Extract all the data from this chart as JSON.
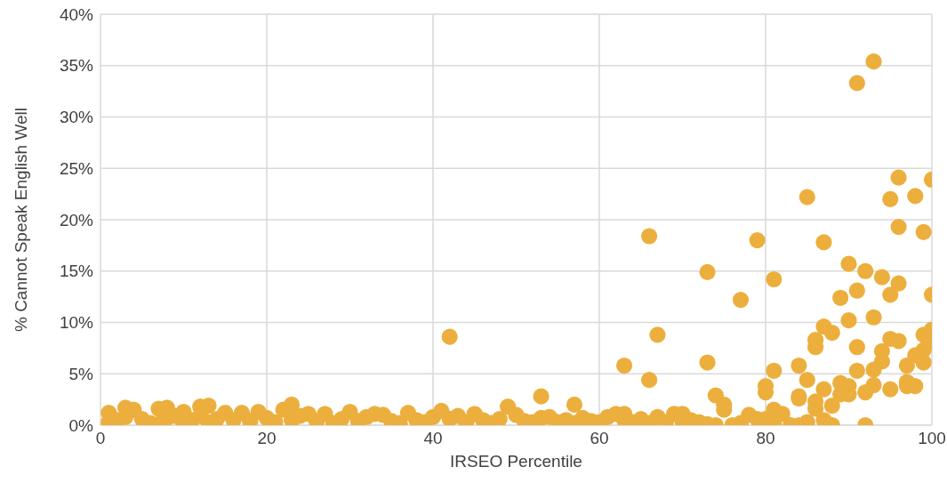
{
  "chart_data": {
    "type": "scatter",
    "xlabel": "IRSEO Percentile",
    "ylabel": "% Cannot Speak English Well",
    "color": "#ecaf3d",
    "grid": true,
    "x": [
      93,
      91,
      96,
      100,
      85,
      95,
      98,
      96,
      99,
      66,
      79,
      87,
      90,
      92,
      73,
      94,
      81,
      96,
      91,
      100,
      95,
      89,
      77,
      93,
      90,
      87,
      88,
      100,
      67,
      99,
      42,
      86,
      95,
      96,
      100,
      86,
      91,
      99,
      94,
      98,
      94,
      99,
      73,
      97,
      63,
      84,
      91,
      93,
      81,
      66,
      85,
      89,
      97,
      97,
      98,
      90,
      93,
      80,
      87,
      95,
      89,
      90,
      80,
      92,
      74,
      84,
      53,
      84,
      86,
      75,
      57,
      88,
      75,
      86,
      81,
      82,
      87,
      88,
      92,
      84,
      1,
      1,
      2,
      3,
      3,
      4,
      5,
      6,
      7,
      7,
      8,
      8,
      9,
      10,
      10,
      11,
      12,
      12,
      13,
      13,
      14,
      15,
      16,
      17,
      18,
      19,
      20,
      21,
      22,
      23,
      23,
      24,
      25,
      26,
      27,
      28,
      29,
      30,
      31,
      32,
      33,
      34,
      35,
      36,
      37,
      38,
      39,
      40,
      41,
      42,
      43,
      44,
      45,
      46,
      47,
      48,
      49,
      50,
      51,
      52,
      53,
      54,
      55,
      56,
      57,
      58,
      59,
      60,
      61,
      62,
      63,
      63,
      64,
      65,
      66,
      67,
      68,
      69,
      70,
      70,
      71,
      72,
      73,
      74,
      76,
      77,
      78,
      79,
      80,
      81,
      83,
      85
    ],
    "values": [
      35.4,
      33.3,
      24.1,
      23.9,
      22.2,
      22.0,
      22.3,
      19.3,
      18.8,
      18.4,
      18.0,
      17.8,
      15.7,
      15.0,
      14.9,
      14.4,
      14.2,
      13.8,
      13.1,
      12.7,
      12.7,
      12.4,
      12.2,
      10.5,
      10.2,
      9.6,
      9.0,
      9.3,
      8.8,
      8.8,
      8.6,
      8.3,
      8.4,
      8.2,
      8.1,
      7.6,
      7.6,
      7.3,
      7.2,
      6.8,
      6.2,
      6.1,
      6.1,
      5.8,
      5.8,
      5.8,
      5.3,
      5.4,
      5.3,
      4.4,
      4.4,
      4.1,
      4.2,
      3.8,
      3.8,
      3.8,
      3.9,
      3.8,
      3.5,
      3.5,
      3.0,
      3.0,
      3.2,
      3.2,
      2.9,
      2.8,
      2.8,
      2.6,
      2.3,
      2.0,
      2.0,
      1.9,
      1.5,
      1.6,
      1.5,
      1.1,
      0.5,
      0,
      0,
      0,
      1.2,
      0.3,
      0.5,
      1.7,
      0.8,
      1.5,
      0.6,
      0.2,
      1.6,
      0.1,
      1.7,
      0.7,
      0.9,
      1.3,
      0.2,
      0.5,
      1.8,
      0.9,
      1.9,
      0.3,
      0.6,
      1.2,
      0.5,
      1.2,
      0.4,
      1.3,
      0.7,
      0.3,
      1.5,
      2.0,
      0.5,
      0.9,
      1.1,
      0.4,
      1.1,
      0.2,
      0.6,
      1.3,
      0.4,
      0.8,
      1.1,
      1.0,
      0.4,
      0.2,
      1.2,
      0.5,
      0.3,
      0.8,
      1.4,
      0.6,
      0.9,
      0.3,
      1.1,
      0.5,
      0.2,
      0.6,
      1.8,
      1.0,
      0.4,
      0.3,
      0.7,
      0.8,
      0.3,
      0.5,
      0.2,
      0.7,
      0.4,
      0.3,
      0.8,
      1.1,
      1.1,
      0.5,
      0.3,
      0.6,
      0.2,
      0.8,
      0.3,
      1.1,
      1.1,
      0.4,
      0.5,
      0.3,
      0.1,
      0,
      0,
      0.2,
      1.0,
      0.6,
      0.6,
      0.2,
      0,
      0.3
    ],
    "xlim": [
      0,
      100
    ],
    "xticks": [
      0,
      20,
      40,
      60,
      80,
      100
    ],
    "ylim": [
      0,
      40
    ],
    "yticks": [
      {
        "value": 0,
        "label": "0%"
      },
      {
        "value": 5,
        "label": "5%"
      },
      {
        "value": 10,
        "label": "10%"
      },
      {
        "value": 15,
        "label": "15%"
      },
      {
        "value": 20,
        "label": "20%"
      },
      {
        "value": 25,
        "label": "25%"
      },
      {
        "value": 30,
        "label": "30%"
      },
      {
        "value": 35,
        "label": "35%"
      },
      {
        "value": 40,
        "label": "40%"
      }
    ]
  }
}
